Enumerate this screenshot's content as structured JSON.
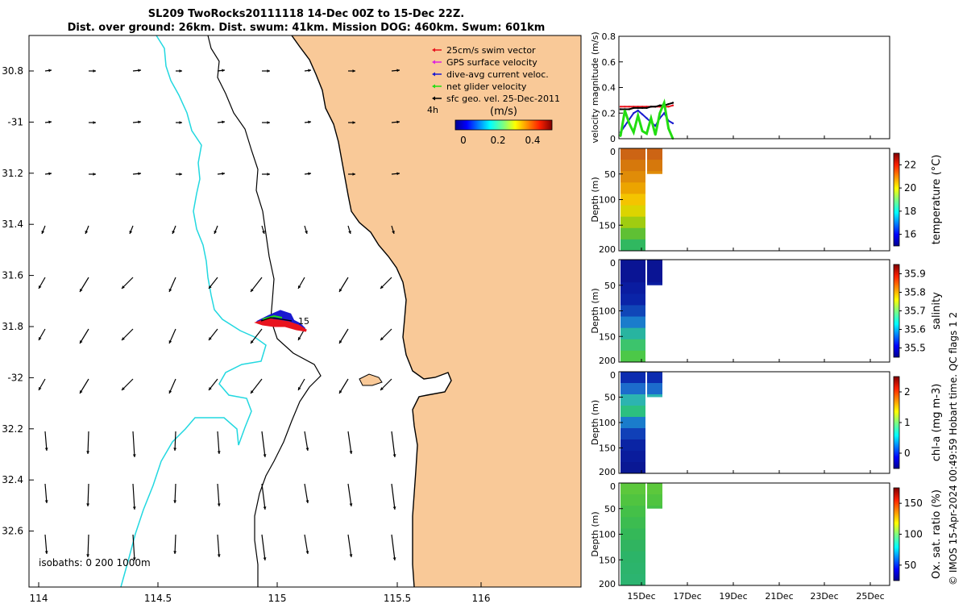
{
  "title": {
    "line1": "SL209 TwoRocks20111118 14-Dec 00Z to 15-Dec 22Z.",
    "line2": "Dist. over ground: 26km. Dist. swum: 41km. Mission DOG: 460km. Swum: 601km"
  },
  "credit": "© IMOS 15-Apr-2024 00:49:59 Hobart time. QC flags 1  2",
  "colors": {
    "land": "#f9c998",
    "isobath_200": "#22d8e0",
    "swim_vector": "#e8141e",
    "gps_velocity": "#dd22dd",
    "current_velocity": "#1a1ad0",
    "net_velocity": "#22dd11",
    "geo_velocity": "#000000"
  },
  "map": {
    "lon_ticks": [
      "114",
      "114.5",
      "115",
      "115.5",
      "116"
    ],
    "lat_ticks": [
      "30.8",
      "-31",
      "31.2",
      "31.4",
      "31.6",
      "31.8",
      "-32",
      "32.2",
      "32.4",
      "32.6"
    ],
    "legend": [
      {
        "label": "25cm/s swim vector",
        "color_key": "swim_vector"
      },
      {
        "label": "GPS surface velocity",
        "color_key": "gps_velocity"
      },
      {
        "label": "dive-avg current veloc.",
        "color_key": "current_velocity"
      },
      {
        "label": "net glider velocity",
        "color_key": "net_velocity"
      },
      {
        "label": "sfc geo. vel. 25-Dec-2011",
        "color_key": "geo_velocity"
      }
    ],
    "duration_label": "4h",
    "colorbar": {
      "label": "(m/s)",
      "ticks": [
        "0",
        "0.2",
        "0.4"
      ]
    },
    "isobaths_label": "isobaths: 0   200  1000m",
    "track_label": "15"
  },
  "chart_data": [
    {
      "type": "line",
      "ylabel": "velocity magnitude (m/s)",
      "ylim": [
        0,
        0.8
      ],
      "yticks": [
        "0",
        "0.2",
        "0.4",
        "0.6",
        "0.8"
      ],
      "series": [
        {
          "color_key": "swim_vector",
          "values": [
            0.25,
            0.25,
            0.25,
            0.25,
            0.25,
            0.25,
            0.25,
            0.25,
            0.25,
            0.25,
            0.25,
            0.25,
            0.26
          ]
        },
        {
          "color_key": "geo_velocity",
          "values": [
            0.23,
            0.23,
            0.23,
            0.24,
            0.24,
            0.24,
            0.24,
            0.25,
            0.25,
            0.26,
            0.26,
            0.27,
            0.28
          ]
        },
        {
          "color_key": "current_velocity",
          "values": [
            0.05,
            0.1,
            0.15,
            0.2,
            0.22,
            0.19,
            0.16,
            0.13,
            0.1,
            0.16,
            0.2,
            0.14,
            0.12
          ]
        },
        {
          "color_key": "net_velocity",
          "values": [
            0.02,
            0.22,
            0.12,
            0.05,
            0.18,
            0.06,
            0.04,
            0.16,
            0.03,
            0.2,
            0.28,
            0.08,
            0.0
          ]
        }
      ]
    },
    {
      "type": "heatmap",
      "ylabel": "Depth (m)",
      "colorbar_label": "temperature (°C)",
      "ylim": [
        0,
        200
      ],
      "yticks": [
        "0",
        "50",
        "100",
        "150",
        "200"
      ],
      "cb_ticks": [
        "16",
        "18",
        "20",
        "22"
      ],
      "profile": [
        "#cc6414",
        "#d6780c",
        "#e08c08",
        "#eca400",
        "#f4c400",
        "#dcd400",
        "#a0cc10",
        "#5fc034",
        "#30b860"
      ]
    },
    {
      "type": "heatmap",
      "ylabel": "Depth (m)",
      "colorbar_label": "salinity",
      "ylim": [
        0,
        200
      ],
      "yticks": [
        "0",
        "50",
        "100",
        "150",
        "200"
      ],
      "cb_ticks": [
        "35.5",
        "35.6",
        "35.7",
        "35.8",
        "35.9"
      ],
      "profile": [
        "#0a1494",
        "#0a1494",
        "#0a1ca0",
        "#0a24a8",
        "#1046b8",
        "#1a7ccc",
        "#28b4a0",
        "#3cc46c",
        "#4cc848"
      ]
    },
    {
      "type": "heatmap",
      "ylabel": "Depth (m)",
      "colorbar_label": "chl-a (mg m-3)",
      "ylim": [
        0,
        200
      ],
      "yticks": [
        "0",
        "50",
        "100",
        "150",
        "200"
      ],
      "cb_ticks": [
        "0",
        "1",
        "2"
      ],
      "profile": [
        "#0c2cb0",
        "#1c6ccc",
        "#2cb4b0",
        "#2cc080",
        "#1a7ccc",
        "#1040b8",
        "#0a24a4",
        "#0a1c9c",
        "#0a1894"
      ]
    },
    {
      "type": "heatmap",
      "ylabel": "Depth (m)",
      "colorbar_label": "Ox. sat. ratio (%)",
      "ylim": [
        0,
        200
      ],
      "yticks": [
        "0",
        "50",
        "100",
        "150",
        "200"
      ],
      "cb_ticks": [
        "50",
        "100",
        "150"
      ],
      "profile": [
        "#5cc83c",
        "#50c440",
        "#44c048",
        "#3cbc50",
        "#34b858",
        "#30b460",
        "#2cb468",
        "#2cb46c",
        "#2cb470"
      ],
      "xticks": [
        "15Dec",
        "17Dec",
        "19Dec",
        "21Dec",
        "23Dec",
        "25Dec"
      ]
    }
  ]
}
